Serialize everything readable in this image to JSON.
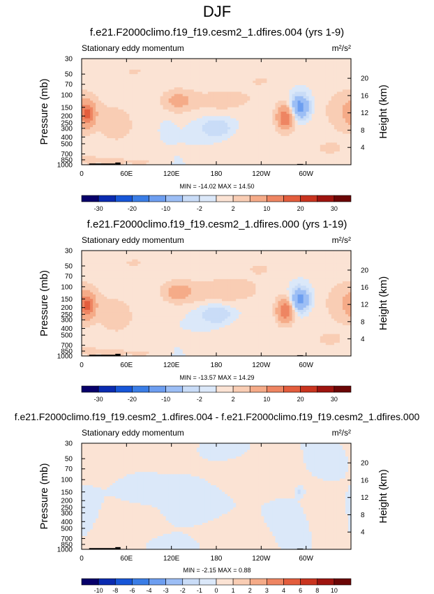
{
  "page_title": "DJF",
  "colormap": [
    "#08006a",
    "#0a2bb0",
    "#1756d8",
    "#3a7de6",
    "#6d9ef0",
    "#9cbef5",
    "#c9dcf7",
    "#dbe8f9",
    "#fbe3d4",
    "#f9cdb4",
    "#f5ab88",
    "#ee8562",
    "#e35d3d",
    "#c9341f",
    "#9e140f",
    "#6b0606"
  ],
  "chart_data": [
    {
      "type": "heatmap",
      "title": "f.e21.F2000climo.f19_f19.cesm2_1.dfires.004 (yrs 1-9)",
      "subtitle_left": "Stationary eddy momentum",
      "units": "m²/s²",
      "ylabel": "Pressure (mb)",
      "ylabel_right": "Height (km)",
      "xticks": [
        "0",
        "60E",
        "120E",
        "180",
        "120W",
        "60W"
      ],
      "xtick_lon": [
        0,
        60,
        120,
        180,
        240,
        300
      ],
      "xlim": [
        0,
        360
      ],
      "yticks": [
        "30",
        "50",
        "70",
        "100",
        "150",
        "200",
        "250",
        "300",
        "400",
        "500",
        "700",
        "850",
        "1000"
      ],
      "ytick_p": [
        30,
        50,
        70,
        100,
        150,
        200,
        250,
        300,
        400,
        500,
        700,
        850,
        1000
      ],
      "ylim": [
        30,
        1000
      ],
      "height_ticks": [
        "20",
        "16",
        "12",
        "8",
        "4"
      ],
      "height_km": [
        20,
        16,
        12,
        8,
        4
      ],
      "stats": "MIN = -14.02  MAX = 14.50",
      "min": -14.02,
      "max": 14.5,
      "colorbar_levels": [
        -35,
        -30,
        -25,
        -20,
        -15,
        -10,
        -5,
        -2,
        0,
        2,
        5,
        10,
        15,
        20,
        25,
        30,
        35
      ],
      "colorbar_labels": [
        "-30",
        "-20",
        "-10",
        "-2",
        "2",
        "10",
        "20",
        "30"
      ],
      "colorbar_label_levels": [
        -30,
        -20,
        -10,
        -2,
        2,
        10,
        20,
        30
      ],
      "features": [
        {
          "lon": 8,
          "p": 185,
          "value": 14,
          "sx": 7,
          "sy": 0.28
        },
        {
          "lon": 0,
          "p": 160,
          "value": 2,
          "sx": 35,
          "sy": 0.7
        },
        {
          "lon": 128,
          "p": 120,
          "value": 6,
          "sx": 14,
          "sy": 0.25
        },
        {
          "lon": 185,
          "p": 120,
          "value": 3,
          "sx": 40,
          "sy": 0.3
        },
        {
          "lon": 180,
          "p": 300,
          "value": -5,
          "sx": 14,
          "sy": 0.22
        },
        {
          "lon": 115,
          "p": 320,
          "value": -1.5,
          "sx": 5,
          "sy": 0.15
        },
        {
          "lon": 272,
          "p": 210,
          "value": 14.5,
          "sx": 8,
          "sy": 0.28
        },
        {
          "lon": 292,
          "p": 150,
          "value": -14.02,
          "sx": 9,
          "sy": 0.28
        },
        {
          "lon": 298,
          "p": 210,
          "value": 1,
          "sx": 18,
          "sy": 0.45
        },
        {
          "lon": 350,
          "p": 170,
          "value": 3,
          "sx": 12,
          "sy": 0.4
        },
        {
          "lon": 240,
          "p": 60,
          "value": 2,
          "sx": 25,
          "sy": 0.3
        },
        {
          "lon": 70,
          "p": 45,
          "value": 2,
          "sx": 25,
          "sy": 0.25
        },
        {
          "lon": 150,
          "p": 40,
          "value": 1.5,
          "sx": 30,
          "sy": 0.25
        },
        {
          "lon": 50,
          "p": 280,
          "value": 2.5,
          "sx": 20,
          "sy": 0.5
        },
        {
          "lon": 330,
          "p": 600,
          "value": 2,
          "sx": 25,
          "sy": 0.3
        },
        {
          "lon": 225,
          "p": 500,
          "value": 2,
          "sx": 25,
          "sy": 0.35
        },
        {
          "lon": 42,
          "p": 900,
          "value": 4,
          "sx": 14,
          "sy": 0.1
        },
        {
          "lon": 80,
          "p": 920,
          "value": 3,
          "sx": 10,
          "sy": 0.1
        },
        {
          "lon": 10,
          "p": 850,
          "value": 3,
          "sx": 8,
          "sy": 0.12
        }
      ]
    },
    {
      "type": "heatmap",
      "title": "f.e21.F2000climo.f19_f19.cesm2_1.dfires.000 (yrs 1-19)",
      "subtitle_left": "Stationary eddy momentum",
      "units": "m²/s²",
      "ylabel": "Pressure (mb)",
      "ylabel_right": "Height (km)",
      "xticks": [
        "0",
        "60E",
        "120E",
        "180",
        "120W",
        "60W"
      ],
      "xtick_lon": [
        0,
        60,
        120,
        180,
        240,
        300
      ],
      "xlim": [
        0,
        360
      ],
      "yticks": [
        "30",
        "50",
        "70",
        "100",
        "150",
        "200",
        "250",
        "300",
        "400",
        "500",
        "700",
        "850",
        "1000"
      ],
      "ytick_p": [
        30,
        50,
        70,
        100,
        150,
        200,
        250,
        300,
        400,
        500,
        700,
        850,
        1000
      ],
      "ylim": [
        30,
        1000
      ],
      "height_ticks": [
        "20",
        "16",
        "12",
        "8",
        "4"
      ],
      "height_km": [
        20,
        16,
        12,
        8,
        4
      ],
      "stats": "MIN = -13.57  MAX = 14.29",
      "min": -13.57,
      "max": 14.29,
      "colorbar_levels": [
        -35,
        -30,
        -25,
        -20,
        -15,
        -10,
        -5,
        -2,
        0,
        2,
        5,
        10,
        15,
        20,
        25,
        30,
        35
      ],
      "colorbar_labels": [
        "-30",
        "-20",
        "-10",
        "-2",
        "2",
        "10",
        "20",
        "30"
      ],
      "colorbar_label_levels": [
        -30,
        -20,
        -10,
        -2,
        2,
        10,
        20,
        30
      ],
      "features": [
        {
          "lon": 8,
          "p": 185,
          "value": 14,
          "sx": 7,
          "sy": 0.28
        },
        {
          "lon": 0,
          "p": 160,
          "value": 2,
          "sx": 35,
          "sy": 0.7
        },
        {
          "lon": 128,
          "p": 120,
          "value": 6,
          "sx": 14,
          "sy": 0.25
        },
        {
          "lon": 185,
          "p": 115,
          "value": 4,
          "sx": 40,
          "sy": 0.3
        },
        {
          "lon": 180,
          "p": 250,
          "value": -5,
          "sx": 14,
          "sy": 0.22
        },
        {
          "lon": 272,
          "p": 220,
          "value": 14.29,
          "sx": 8,
          "sy": 0.28
        },
        {
          "lon": 292,
          "p": 155,
          "value": -13.57,
          "sx": 9,
          "sy": 0.28
        },
        {
          "lon": 298,
          "p": 220,
          "value": 1,
          "sx": 18,
          "sy": 0.45
        },
        {
          "lon": 350,
          "p": 170,
          "value": 3,
          "sx": 12,
          "sy": 0.4
        },
        {
          "lon": 240,
          "p": 55,
          "value": 2,
          "sx": 25,
          "sy": 0.3
        },
        {
          "lon": 70,
          "p": 45,
          "value": 2,
          "sx": 25,
          "sy": 0.25
        },
        {
          "lon": 160,
          "p": 40,
          "value": 2,
          "sx": 35,
          "sy": 0.25
        },
        {
          "lon": 50,
          "p": 280,
          "value": 2.5,
          "sx": 20,
          "sy": 0.5
        },
        {
          "lon": 330,
          "p": 600,
          "value": 2,
          "sx": 25,
          "sy": 0.3
        },
        {
          "lon": 225,
          "p": 500,
          "value": 2,
          "sx": 25,
          "sy": 0.35
        },
        {
          "lon": 42,
          "p": 900,
          "value": 4,
          "sx": 14,
          "sy": 0.1
        },
        {
          "lon": 80,
          "p": 920,
          "value": 3,
          "sx": 10,
          "sy": 0.1
        },
        {
          "lon": 10,
          "p": 850,
          "value": 3,
          "sx": 8,
          "sy": 0.12
        }
      ]
    },
    {
      "type": "heatmap",
      "title": "f.e21.F2000climo.f19_f19.cesm2_1.dfires.004 - f.e21.F2000climo.f19_f19.cesm2_1.dfires.000",
      "subtitle_left": "Stationary eddy momentum",
      "units": "m²/s²",
      "ylabel": "Pressure (mb)",
      "ylabel_right": "Height (km)",
      "xticks": [
        "0",
        "60E",
        "120E",
        "180",
        "120W",
        "60W"
      ],
      "xtick_lon": [
        0,
        60,
        120,
        180,
        240,
        300
      ],
      "xlim": [
        0,
        360
      ],
      "yticks": [
        "30",
        "50",
        "70",
        "100",
        "150",
        "200",
        "250",
        "300",
        "400",
        "500",
        "700",
        "850",
        "1000"
      ],
      "ytick_p": [
        30,
        50,
        70,
        100,
        150,
        200,
        250,
        300,
        400,
        500,
        700,
        850,
        1000
      ],
      "ylim": [
        30,
        1000
      ],
      "height_ticks": [
        "20",
        "16",
        "12",
        "8",
        "4"
      ],
      "height_km": [
        20,
        16,
        12,
        8,
        4
      ],
      "stats": "MIN =  -2.15  MAX =   0.88",
      "min": -2.15,
      "max": 0.88,
      "colorbar_levels": [
        -12,
        -10,
        -8,
        -6,
        -4,
        -3,
        -2,
        -1,
        0,
        1,
        2,
        3,
        4,
        6,
        8,
        10,
        12
      ],
      "colorbar_labels": [
        "-10",
        "-8",
        "-6",
        "-4",
        "-3",
        "-2",
        "-1",
        "0",
        "1",
        "2",
        "3",
        "4",
        "6",
        "8",
        "10"
      ],
      "colorbar_label_levels": [
        -10,
        -8,
        -6,
        -4,
        -3,
        -2,
        -1,
        0,
        1,
        2,
        3,
        4,
        6,
        8,
        10
      ],
      "features": [
        {
          "lon": 20,
          "p": 60,
          "value": 0.5,
          "sx": 30,
          "sy": 0.35
        },
        {
          "lon": 110,
          "p": 45,
          "value": 0.5,
          "sx": 40,
          "sy": 0.3
        },
        {
          "lon": 230,
          "p": 90,
          "value": 0.5,
          "sx": 35,
          "sy": 0.4
        },
        {
          "lon": 330,
          "p": 300,
          "value": 0.5,
          "sx": 30,
          "sy": 0.5
        },
        {
          "lon": 60,
          "p": 500,
          "value": 0.5,
          "sx": 30,
          "sy": 0.5
        },
        {
          "lon": 200,
          "p": 650,
          "value": 0.5,
          "sx": 35,
          "sy": 0.4
        },
        {
          "lon": 150,
          "p": 220,
          "value": -0.5,
          "sx": 25,
          "sy": 0.45
        },
        {
          "lon": 80,
          "p": 130,
          "value": -0.5,
          "sx": 20,
          "sy": 0.3
        },
        {
          "lon": 280,
          "p": 400,
          "value": -0.5,
          "sx": 20,
          "sy": 0.45
        },
        {
          "lon": 5,
          "p": 300,
          "value": -0.5,
          "sx": 15,
          "sy": 0.5
        },
        {
          "lon": 340,
          "p": 60,
          "value": -0.5,
          "sx": 20,
          "sy": 0.3
        },
        {
          "lon": 180,
          "p": 40,
          "value": -0.5,
          "sx": 20,
          "sy": 0.2
        },
        {
          "lon": 120,
          "p": 850,
          "value": -0.5,
          "sx": 25,
          "sy": 0.2
        },
        {
          "lon": 292,
          "p": 150,
          "value": -1.5,
          "sx": 3,
          "sy": 0.1
        }
      ]
    }
  ]
}
